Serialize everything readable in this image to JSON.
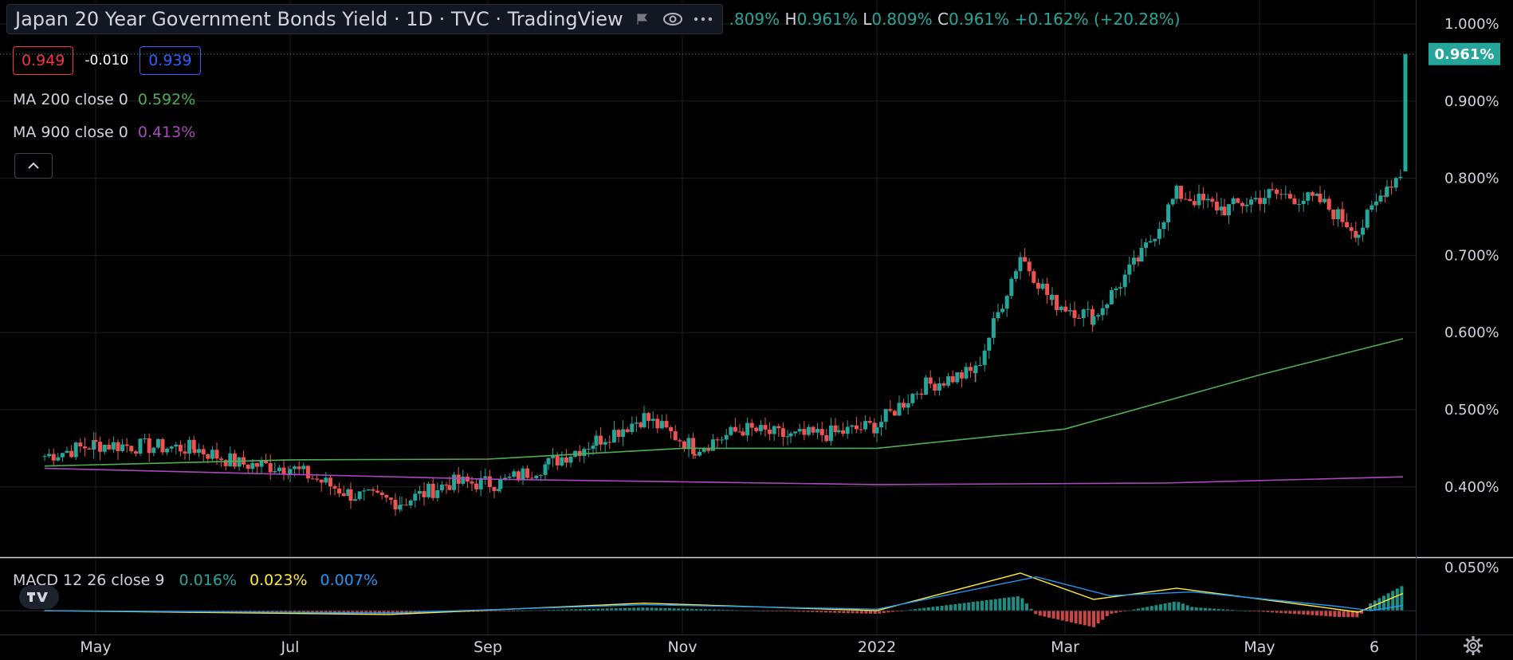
{
  "header": {
    "title": "Japan 20 Year Government Bonds Yield · 1D · TVC · TradingView",
    "ohlc": [
      {
        "k": "",
        "v": ".809%"
      },
      {
        "k": "H",
        "v": "0.961%"
      },
      {
        "k": "L",
        "v": "0.809%"
      },
      {
        "k": "C",
        "v": "0.961%"
      },
      {
        "k": "",
        "v": "+0.162% (+20.28%)"
      }
    ]
  },
  "quote": {
    "bid": "0.949",
    "spread": "-0.010",
    "ask": "0.939"
  },
  "indicators": {
    "ma200": {
      "label": "MA 200 close 0",
      "value": "0.592%",
      "color": "#4caf50"
    },
    "ma900": {
      "label": "MA 900 close 0",
      "value": "0.413%",
      "color": "#ab47bc"
    }
  },
  "macd": {
    "label": "MACD 12 26 close 9",
    "hist": "0.016%",
    "macd": "0.023%",
    "signal": "0.007%",
    "colors": {
      "hist": "#26a69a",
      "macd": "#ffeb3b",
      "signal": "#2196f3"
    }
  },
  "colors": {
    "up": "#26a69a",
    "down": "#ef5350",
    "grid": "#1e1e1e",
    "axis_text": "#d1d4dc",
    "last_price_bg": "#26a69a"
  },
  "icons": [
    "flag-icon",
    "eye-icon",
    "more-icon",
    "chevron-up-icon",
    "tradingview-logo-icon",
    "settings-gear-icon"
  ],
  "chart_data": {
    "type": "candlestick",
    "title": "Japan 20 Year Government Bonds Yield",
    "x_ticks": [
      "May",
      "Jul",
      "Sep",
      "Nov",
      "2022",
      "Mar",
      "May",
      "6"
    ],
    "y_ticks": [
      "1.000%",
      "0.900%",
      "0.800%",
      "0.700%",
      "0.600%",
      "0.500%",
      "0.400%"
    ],
    "ylim": [
      0.33,
      1.02
    ],
    "last_price_label": "0.961%",
    "last_price": 0.961,
    "close_path": [
      {
        "d": "2021-04-15",
        "v": 0.44
      },
      {
        "d": "2021-05-01",
        "v": 0.455
      },
      {
        "d": "2021-06-01",
        "v": 0.45
      },
      {
        "d": "2021-06-15",
        "v": 0.43
      },
      {
        "d": "2021-07-01",
        "v": 0.425
      },
      {
        "d": "2021-07-20",
        "v": 0.39
      },
      {
        "d": "2021-08-05",
        "v": 0.38
      },
      {
        "d": "2021-08-20",
        "v": 0.405
      },
      {
        "d": "2021-09-05",
        "v": 0.405
      },
      {
        "d": "2021-09-20",
        "v": 0.43
      },
      {
        "d": "2021-10-05",
        "v": 0.46
      },
      {
        "d": "2021-10-20",
        "v": 0.49
      },
      {
        "d": "2021-11-05",
        "v": 0.45
      },
      {
        "d": "2021-11-20",
        "v": 0.475
      },
      {
        "d": "2021-12-05",
        "v": 0.465
      },
      {
        "d": "2021-12-20",
        "v": 0.47
      },
      {
        "d": "2022-01-01",
        "v": 0.48
      },
      {
        "d": "2022-01-15",
        "v": 0.53
      },
      {
        "d": "2022-02-01",
        "v": 0.55
      },
      {
        "d": "2022-02-15",
        "v": 0.7
      },
      {
        "d": "2022-02-25",
        "v": 0.64
      },
      {
        "d": "2022-03-10",
        "v": 0.62
      },
      {
        "d": "2022-03-25",
        "v": 0.7
      },
      {
        "d": "2022-04-05",
        "v": 0.78
      },
      {
        "d": "2022-04-20",
        "v": 0.76
      },
      {
        "d": "2022-05-05",
        "v": 0.78
      },
      {
        "d": "2022-05-20",
        "v": 0.77
      },
      {
        "d": "2022-06-01",
        "v": 0.73
      },
      {
        "d": "2022-06-10",
        "v": 0.79
      },
      {
        "d": "2022-06-15",
        "v": 0.809
      }
    ],
    "last_candle": {
      "o": 0.809,
      "h": 0.961,
      "l": 0.809,
      "c": 0.961
    },
    "series": [
      {
        "name": "MA 200 close 0",
        "points": [
          {
            "d": "2021-04-15",
            "v": 0.427
          },
          {
            "d": "2021-07-01",
            "v": 0.435
          },
          {
            "d": "2021-09-01",
            "v": 0.436
          },
          {
            "d": "2021-11-01",
            "v": 0.45
          },
          {
            "d": "2022-01-01",
            "v": 0.45
          },
          {
            "d": "2022-03-01",
            "v": 0.475
          },
          {
            "d": "2022-05-01",
            "v": 0.545
          },
          {
            "d": "2022-06-15",
            "v": 0.592
          }
        ]
      },
      {
        "name": "MA 900 close 0",
        "points": [
          {
            "d": "2021-04-15",
            "v": 0.424
          },
          {
            "d": "2021-09-01",
            "v": 0.41
          },
          {
            "d": "2022-01-01",
            "v": 0.403
          },
          {
            "d": "2022-04-01",
            "v": 0.405
          },
          {
            "d": "2022-06-15",
            "v": 0.413
          }
        ]
      }
    ],
    "macd_ylim": [
      -0.02,
      0.05
    ],
    "macd_y_ticks": [
      "0.050%"
    ],
    "macd_series": [
      {
        "name": "MACD",
        "points": [
          {
            "d": "2021-04-15",
            "v": 0.0
          },
          {
            "d": "2021-08-01",
            "v": -0.005
          },
          {
            "d": "2021-10-20",
            "v": 0.01
          },
          {
            "d": "2022-01-01",
            "v": 0.0
          },
          {
            "d": "2022-02-15",
            "v": 0.05
          },
          {
            "d": "2022-03-10",
            "v": 0.015
          },
          {
            "d": "2022-04-05",
            "v": 0.03
          },
          {
            "d": "2022-05-20",
            "v": 0.005
          },
          {
            "d": "2022-06-01",
            "v": -0.002
          },
          {
            "d": "2022-06-15",
            "v": 0.023
          }
        ]
      },
      {
        "name": "Signal",
        "points": [
          {
            "d": "2021-04-15",
            "v": 0.0
          },
          {
            "d": "2021-08-01",
            "v": -0.003
          },
          {
            "d": "2021-10-20",
            "v": 0.008
          },
          {
            "d": "2022-01-01",
            "v": 0.002
          },
          {
            "d": "2022-02-20",
            "v": 0.045
          },
          {
            "d": "2022-03-15",
            "v": 0.02
          },
          {
            "d": "2022-04-10",
            "v": 0.025
          },
          {
            "d": "2022-05-25",
            "v": 0.006
          },
          {
            "d": "2022-06-05",
            "v": 0.0
          },
          {
            "d": "2022-06-15",
            "v": 0.007
          }
        ]
      }
    ]
  }
}
